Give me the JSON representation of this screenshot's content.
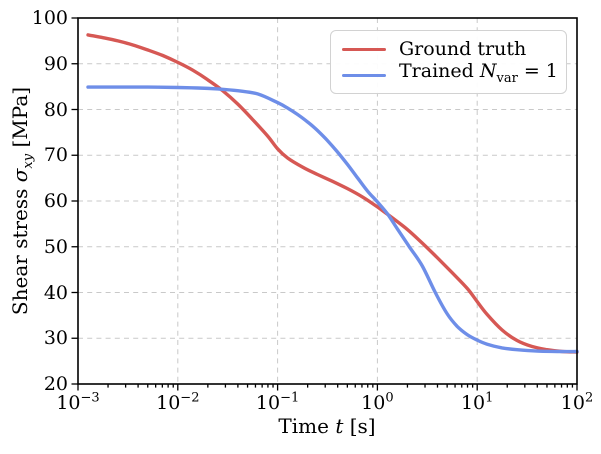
{
  "chart_data": {
    "type": "line",
    "title": "",
    "x_axis": {
      "scale": "log10",
      "range_log10": [
        -3,
        2
      ],
      "label": "Time t [s]",
      "label_parts": {
        "pre": "Time ",
        "var": "t",
        "post": " [s]"
      },
      "tick_base": "10",
      "tick_exponents": [
        -3,
        -2,
        -1,
        0,
        1,
        2
      ],
      "minor_ticks": "log subdivisions 2-9 each decade, bottom axis only"
    },
    "y_axis": {
      "range": [
        20,
        100
      ],
      "label": "Shear stress σxy [MPa]",
      "label_parts": {
        "pre": "Shear stress ",
        "sym": "σ",
        "sub": "xy",
        "post": " [MPa]"
      },
      "ticks": [
        100,
        90,
        80,
        70,
        60,
        50,
        40,
        30,
        20
      ]
    },
    "grid": {
      "show": true,
      "style": "dashed",
      "color": "#c9c9c9"
    },
    "frame_color": "#000000",
    "legend": {
      "position": "upper-right",
      "entries": [
        {
          "label": "Ground truth",
          "color": "#d65854"
        },
        {
          "label": "Trained Nvar = 1",
          "label_parts": {
            "pre": "Trained ",
            "var": "N",
            "sub": "var",
            "post": " = 1"
          },
          "color": "#6e8ee8"
        }
      ]
    },
    "series": [
      {
        "name": "Ground truth",
        "color": "#d65854",
        "points_log10t_mpa": [
          [
            -2.9,
            96.3
          ],
          [
            -2.75,
            95.7
          ],
          [
            -2.6,
            95.0
          ],
          [
            -2.45,
            94.1
          ],
          [
            -2.3,
            93.0
          ],
          [
            -2.15,
            91.8
          ],
          [
            -2.0,
            90.3
          ],
          [
            -1.85,
            88.6
          ],
          [
            -1.7,
            86.5
          ],
          [
            -1.55,
            84.1
          ],
          [
            -1.4,
            81.2
          ],
          [
            -1.25,
            77.8
          ],
          [
            -1.1,
            74.2
          ],
          [
            -1.0,
            71.4
          ],
          [
            -0.9,
            69.4
          ],
          [
            -0.75,
            67.4
          ],
          [
            -0.6,
            65.8
          ],
          [
            -0.45,
            64.3
          ],
          [
            -0.3,
            62.7
          ],
          [
            -0.15,
            60.9
          ],
          [
            0.0,
            58.7
          ],
          [
            0.15,
            56.3
          ],
          [
            0.3,
            53.8
          ],
          [
            0.45,
            50.8
          ],
          [
            0.6,
            47.6
          ],
          [
            0.75,
            44.3
          ],
          [
            0.9,
            40.9
          ],
          [
            1.0,
            38.0
          ],
          [
            1.1,
            35.2
          ],
          [
            1.25,
            31.8
          ],
          [
            1.4,
            29.5
          ],
          [
            1.55,
            28.2
          ],
          [
            1.7,
            27.5
          ],
          [
            1.85,
            27.1
          ],
          [
            2.0,
            27.0
          ]
        ]
      },
      {
        "name": "Trained Nvar = 1",
        "color": "#6e8ee8",
        "points_log10t_mpa": [
          [
            -2.9,
            84.9
          ],
          [
            -2.6,
            84.9
          ],
          [
            -2.3,
            84.9
          ],
          [
            -2.0,
            84.8
          ],
          [
            -1.8,
            84.7
          ],
          [
            -1.6,
            84.5
          ],
          [
            -1.4,
            84.1
          ],
          [
            -1.2,
            83.4
          ],
          [
            -1.0,
            81.5
          ],
          [
            -0.9,
            80.3
          ],
          [
            -0.8,
            78.9
          ],
          [
            -0.7,
            77.3
          ],
          [
            -0.6,
            75.4
          ],
          [
            -0.5,
            73.2
          ],
          [
            -0.4,
            70.7
          ],
          [
            -0.3,
            68.0
          ],
          [
            -0.2,
            65.1
          ],
          [
            -0.1,
            62.2
          ],
          [
            0.0,
            59.8
          ],
          [
            0.1,
            57.2
          ],
          [
            0.2,
            53.9
          ],
          [
            0.32,
            50.0
          ],
          [
            0.45,
            45.8
          ],
          [
            0.58,
            40.0
          ],
          [
            0.7,
            35.3
          ],
          [
            0.8,
            32.6
          ],
          [
            0.9,
            30.8
          ],
          [
            1.0,
            29.6
          ],
          [
            1.1,
            28.7
          ],
          [
            1.25,
            27.9
          ],
          [
            1.4,
            27.5
          ],
          [
            1.6,
            27.2
          ],
          [
            1.8,
            27.1
          ],
          [
            2.0,
            27.1
          ]
        ]
      }
    ]
  }
}
